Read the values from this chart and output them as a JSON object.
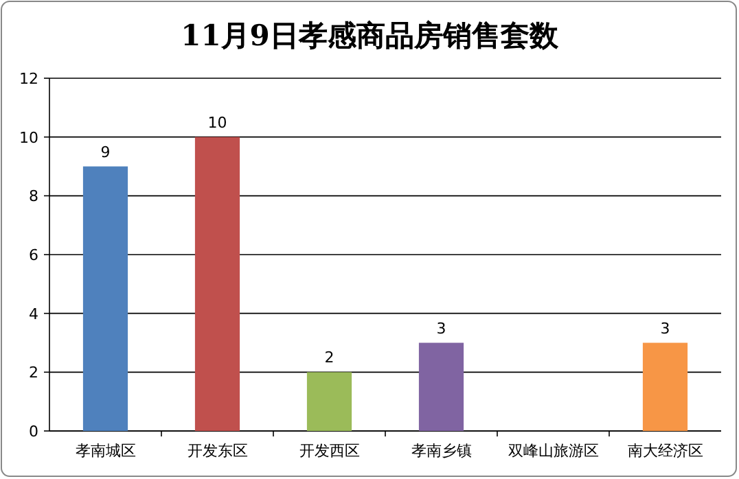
{
  "chart_data": {
    "type": "bar",
    "title": "11月9日孝感商品房销售套数",
    "categories": [
      "孝南城区",
      "开发东区",
      "开发西区",
      "孝南乡镇",
      "双峰山旅游区",
      "南大经济区"
    ],
    "values": [
      9,
      10,
      2,
      3,
      0,
      3
    ],
    "colors": [
      "#4f81bd",
      "#c0504d",
      "#9bbb59",
      "#8064a2",
      "#4bacc6",
      "#f79646"
    ],
    "value_labels": [
      "9",
      "10",
      "2",
      "3",
      null,
      "3"
    ],
    "ylim": [
      0,
      12
    ],
    "yticks": [
      0,
      2,
      4,
      6,
      8,
      10,
      12
    ],
    "grid": "y"
  }
}
